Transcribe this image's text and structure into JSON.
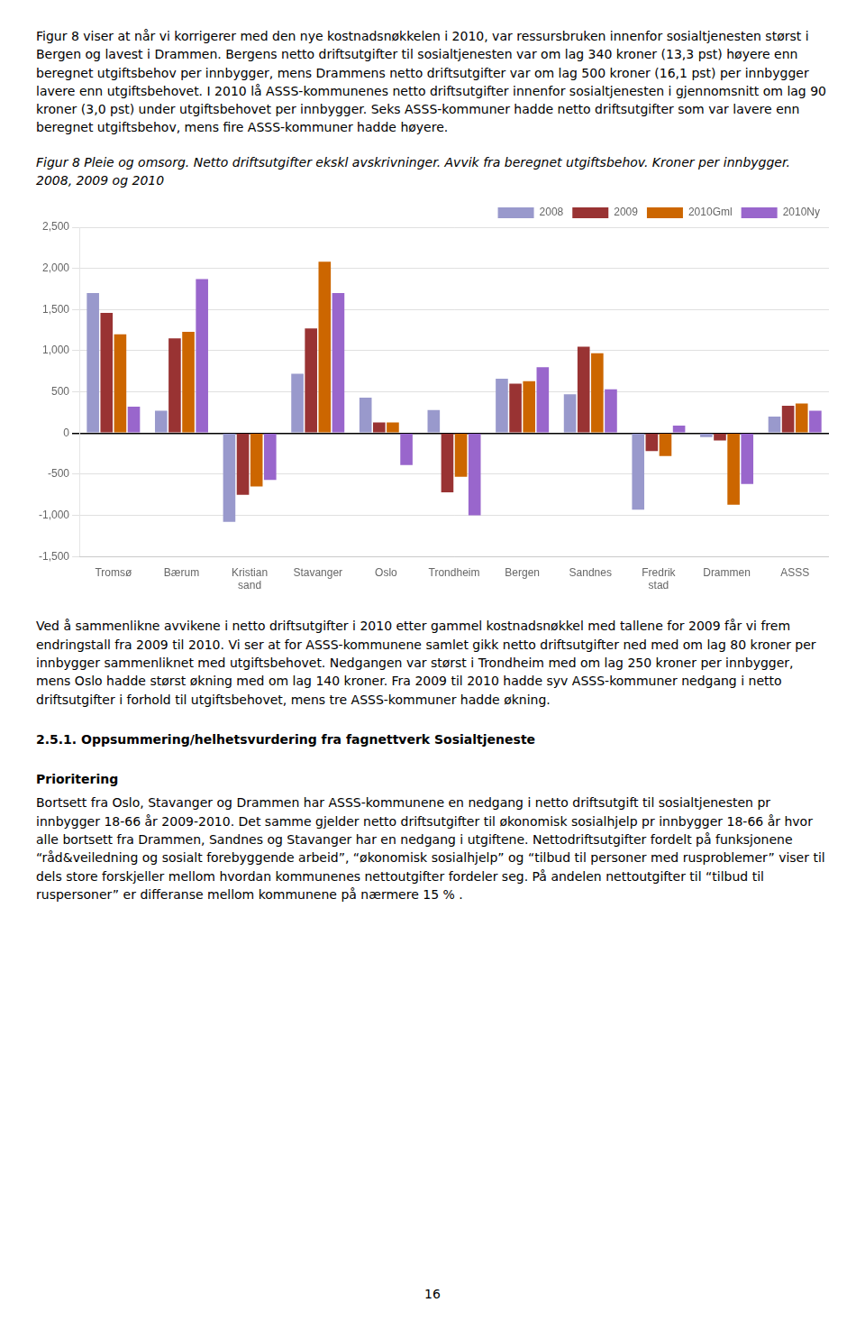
{
  "page": {
    "top_paragraph": "Figur 8 viser at når vi korrigerer med den nye kostnadsnøkkelen i 2010, var ressursbruken innenfor sosialtjenesten størst i Bergen og lavest i Drammen. Bergens netto driftsutgifter til sosialtjenesten var om lag 340 kroner (13,3 pst) høyere enn beregnet utgiftsbehov per innbygger, mens Drammens netto driftsutgifter var om lag 500 kroner (16,1 pst) per innbygger lavere enn utgiftsbehovet. I 2010 lå ASSS-kommunenes netto driftsutgifter innenfor sosialtjenesten i gjennomsnitt om lag 90 kroner (3,0 pst) under utgiftsbehovet per innbygger. Seks ASSS-kommuner hadde netto driftsutgifter som var lavere enn beregnet utgiftsbehov, mens fire ASSS-kommuner hadde høyere.",
    "bottom_paragraph": "Ved å sammenlikne avvikene i netto driftsutgifter i 2010 etter gammel kostnadsnøkkel med tallene for 2009 får vi frem endringstall fra 2009 til 2010. Vi ser at for ASSS-kommunene samlet gikk netto driftsutgifter ned med om lag 80 kroner per innbygger sammenliknet med utgiftsbehovet. Nedgangen var størst i Trondheim med om lag 250 kroner per innbygger, mens Oslo hadde størst økning med om lag 140 kroner. Fra 2009 til 2010 hadde syv ASSS-kommuner nedgang i netto driftsutgifter i forhold til utgiftsbehovet, mens tre ASSS-kommuner hadde økning.",
    "section_heading": "2.5.1.  Oppsummering/helhetsvurdering fra fagnettverk Sosialtjeneste",
    "prioritering_heading": "Prioritering",
    "prioritering_text": "Bortsett fra Oslo, Stavanger og Drammen har ASSS-kommunene en nedgang i netto driftsutgift til sosialtjenesten pr innbygger 18-66 år 2009-2010. Det samme gjelder netto driftsutgifter til økonomisk sosialhjelp pr innbygger 18-66 år hvor alle bortsett fra Drammen, Sandnes og Stavanger har en nedgang i utgiftene. Nettodriftsutgifter fordelt på funksjonene “råd&veiledning og sosialt forebyggende arbeid”, “økonomisk sosialhjelp” og “tilbud til personer med rusproblemer” viser til dels store forskjeller mellom hvordan kommunenes nettoutgifter fordeler seg. På andelen nettoutgifter til “tilbud til ruspersoner” er differanse mellom kommunene på nærmere 15 % .",
    "page_number": "16"
  },
  "chart_data": {
    "type": "bar",
    "title": "Figur 8 Pleie og omsorg. Netto driftsutgifter ekskl avskrivninger. Avvik fra beregnet utgiftsbehov. Kroner per innbygger. 2008, 2009 og 2010",
    "categories": [
      "Tromsø",
      "Bærum",
      "Kristian\nsand",
      "Stavanger",
      "Oslo",
      "Trondheim",
      "Bergen",
      "Sandnes",
      "Fredrik\nstad",
      "Drammen",
      "ASSS"
    ],
    "series": [
      {
        "name": "2008",
        "color": "#9999CC",
        "values": [
          1700,
          270,
          -1080,
          720,
          430,
          280,
          660,
          470,
          -930,
          -50,
          200
        ]
      },
      {
        "name": "2009",
        "color": "#993333",
        "values": [
          1460,
          1150,
          -750,
          1270,
          130,
          -720,
          600,
          1050,
          -220,
          -90,
          330
        ]
      },
      {
        "name": "2010Gml",
        "color": "#CC6600",
        "values": [
          1200,
          1230,
          -650,
          2080,
          130,
          -530,
          630,
          970,
          -280,
          -870,
          360
        ]
      },
      {
        "name": "2010Ny",
        "color": "#9966CC",
        "values": [
          320,
          1870,
          -570,
          1700,
          -390,
          -1000,
          800,
          530,
          90,
          -620,
          270
        ]
      }
    ],
    "ylim": [
      -1500,
      2500
    ],
    "yticks": [
      -1500,
      -1000,
      -500,
      0,
      500,
      1000,
      1500,
      2000,
      2500
    ],
    "grid": true,
    "legend": "upper right"
  }
}
